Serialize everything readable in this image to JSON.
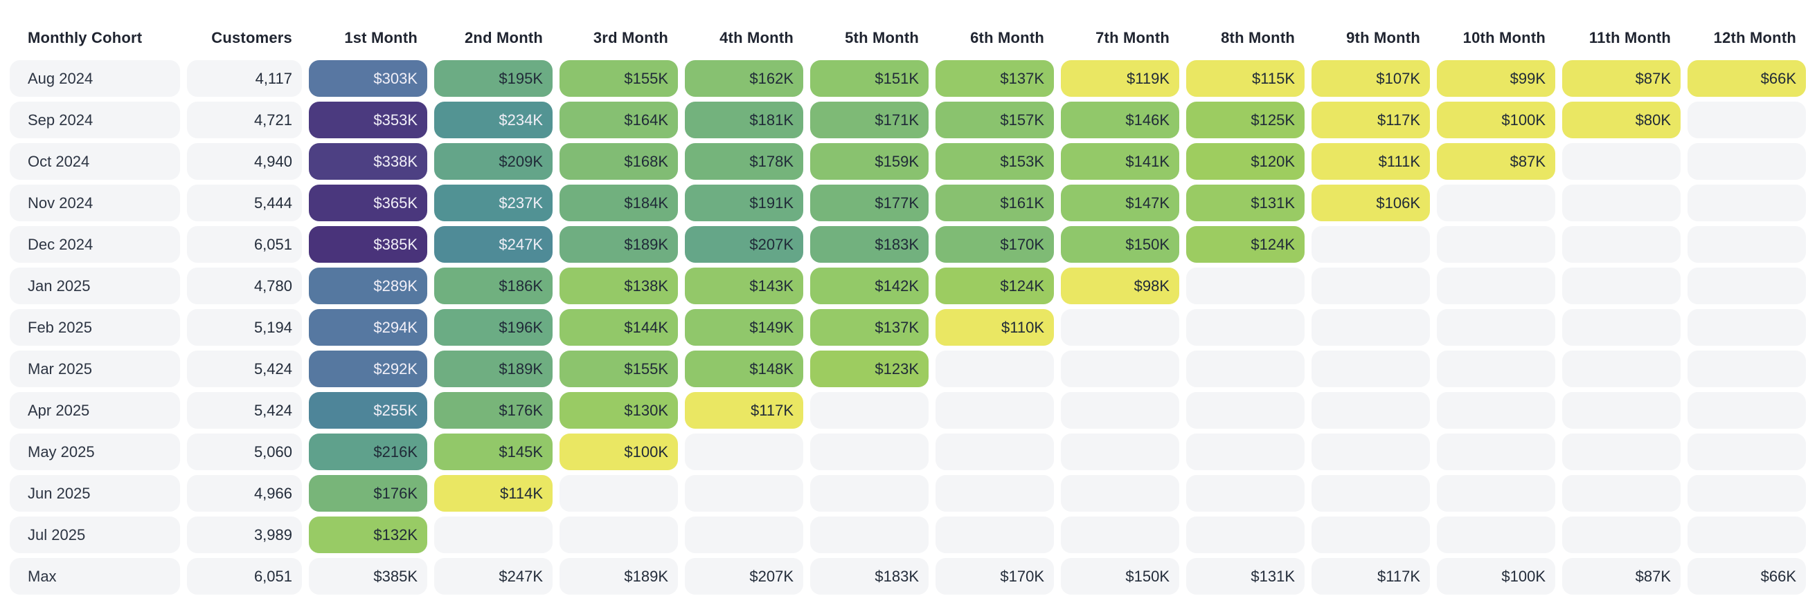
{
  "table": {
    "header": {
      "cohort_label": "Monthly Cohort",
      "customers_label": "Customers",
      "month_labels": [
        "1st Month",
        "2nd Month",
        "3rd Month",
        "4th Month",
        "5th Month",
        "6th Month",
        "7th Month",
        "8th Month",
        "9th Month",
        "10th Month",
        "11th Month",
        "12th Month"
      ]
    },
    "value_prefix": "$",
    "value_suffix": "K",
    "rows": [
      {
        "cohort": "Aug 2024",
        "customers": "4,117",
        "values": [
          303,
          195,
          155,
          162,
          151,
          137,
          119,
          115,
          107,
          99,
          87,
          66
        ]
      },
      {
        "cohort": "Sep 2024",
        "customers": "4,721",
        "values": [
          353,
          234,
          164,
          181,
          171,
          157,
          146,
          125,
          117,
          100,
          80
        ]
      },
      {
        "cohort": "Oct 2024",
        "customers": "4,940",
        "values": [
          338,
          209,
          168,
          178,
          159,
          153,
          141,
          120,
          111,
          87
        ]
      },
      {
        "cohort": "Nov 2024",
        "customers": "5,444",
        "values": [
          365,
          237,
          184,
          191,
          177,
          161,
          147,
          131,
          106
        ]
      },
      {
        "cohort": "Dec 2024",
        "customers": "6,051",
        "values": [
          385,
          247,
          189,
          207,
          183,
          170,
          150,
          124
        ]
      },
      {
        "cohort": "Jan 2025",
        "customers": "4,780",
        "values": [
          289,
          186,
          138,
          143,
          142,
          124,
          98
        ]
      },
      {
        "cohort": "Feb 2025",
        "customers": "5,194",
        "values": [
          294,
          196,
          144,
          149,
          137,
          110
        ]
      },
      {
        "cohort": "Mar 2025",
        "customers": "5,424",
        "values": [
          292,
          189,
          155,
          148,
          123
        ]
      },
      {
        "cohort": "Apr 2025",
        "customers": "5,424",
        "values": [
          255,
          176,
          130,
          117
        ]
      },
      {
        "cohort": "May 2025",
        "customers": "5,060",
        "values": [
          216,
          145,
          100
        ]
      },
      {
        "cohort": "Jun 2025",
        "customers": "4,966",
        "values": [
          176,
          114
        ]
      },
      {
        "cohort": "Jul 2025",
        "customers": "3,989",
        "values": [
          132
        ]
      }
    ],
    "max_row": {
      "cohort": "Max",
      "customers": "6,051",
      "values": [
        385,
        247,
        189,
        207,
        183,
        170,
        150,
        131,
        117,
        100,
        87,
        66
      ]
    }
  },
  "colors": {
    "page_background": "#ffffff",
    "header_text": "#1f2430",
    "label_cell_background": "#f4f5f7",
    "empty_cell_background": "#f4f5f7",
    "max_row_cell_background": "#e8e9ee",
    "dark_value_text": "#1f2937",
    "light_value_text": "#f2f0f8",
    "below_min_color": "#eae763",
    "below_min_cutoff": 120,
    "light_text_threshold": 225,
    "scale_stops": [
      [
        120,
        "#9ecd5f"
      ],
      [
        135,
        "#97ca66"
      ],
      [
        150,
        "#8fc76b"
      ],
      [
        165,
        "#85bf72"
      ],
      [
        180,
        "#73b27c"
      ],
      [
        195,
        "#6cac84"
      ],
      [
        210,
        "#63a589"
      ],
      [
        225,
        "#589b91"
      ],
      [
        240,
        "#4f9095"
      ],
      [
        255,
        "#4e8599"
      ],
      [
        275,
        "#53799e"
      ],
      [
        305,
        "#5877a2"
      ],
      [
        340,
        "#4c3d81"
      ],
      [
        360,
        "#4a387e"
      ],
      [
        385,
        "#49337a"
      ]
    ]
  },
  "chart_data": {
    "type": "heatmap",
    "title": "",
    "x_labels": [
      "1st Month",
      "2nd Month",
      "3rd Month",
      "4th Month",
      "5th Month",
      "6th Month",
      "7th Month",
      "8th Month",
      "9th Month",
      "10th Month",
      "11th Month",
      "12th Month"
    ],
    "y_labels": [
      "Aug 2024",
      "Sep 2024",
      "Oct 2024",
      "Nov 2024",
      "Dec 2024",
      "Jan 2025",
      "Feb 2025",
      "Mar 2025",
      "Apr 2025",
      "May 2025",
      "Jun 2025",
      "Jul 2025",
      "Max"
    ],
    "customers": [
      4117,
      4721,
      4940,
      5444,
      6051,
      4780,
      5194,
      5424,
      5424,
      5060,
      4966,
      3989,
      6051
    ],
    "values_thousand_usd": [
      [
        303,
        195,
        155,
        162,
        151,
        137,
        119,
        115,
        107,
        99,
        87,
        66
      ],
      [
        353,
        234,
        164,
        181,
        171,
        157,
        146,
        125,
        117,
        100,
        80,
        null
      ],
      [
        338,
        209,
        168,
        178,
        159,
        153,
        141,
        120,
        111,
        87,
        null,
        null
      ],
      [
        365,
        237,
        184,
        191,
        177,
        161,
        147,
        131,
        106,
        null,
        null,
        null
      ],
      [
        385,
        247,
        189,
        207,
        183,
        170,
        150,
        124,
        null,
        null,
        null,
        null
      ],
      [
        289,
        186,
        138,
        143,
        142,
        124,
        98,
        null,
        null,
        null,
        null,
        null
      ],
      [
        294,
        196,
        144,
        149,
        137,
        110,
        null,
        null,
        null,
        null,
        null,
        null
      ],
      [
        292,
        189,
        155,
        148,
        123,
        null,
        null,
        null,
        null,
        null,
        null,
        null
      ],
      [
        255,
        176,
        130,
        117,
        null,
        null,
        null,
        null,
        null,
        null,
        null,
        null
      ],
      [
        216,
        145,
        100,
        null,
        null,
        null,
        null,
        null,
        null,
        null,
        null,
        null
      ],
      [
        176,
        114,
        null,
        null,
        null,
        null,
        null,
        null,
        null,
        null,
        null,
        null
      ],
      [
        132,
        null,
        null,
        null,
        null,
        null,
        null,
        null,
        null,
        null,
        null,
        null
      ],
      [
        385,
        247,
        189,
        207,
        183,
        170,
        150,
        131,
        117,
        100,
        87,
        66
      ]
    ],
    "units": "USD thousands",
    "value_format": "$NNNK",
    "color_scale": {
      "min_value": 66,
      "max_value": 385,
      "low": "flat yellow below 120",
      "mid": "green to teal",
      "high": "steel blue to dark purple",
      "palette": "viridis-like, reversed (high = dark)"
    },
    "legend": "none",
    "grid": "off"
  }
}
